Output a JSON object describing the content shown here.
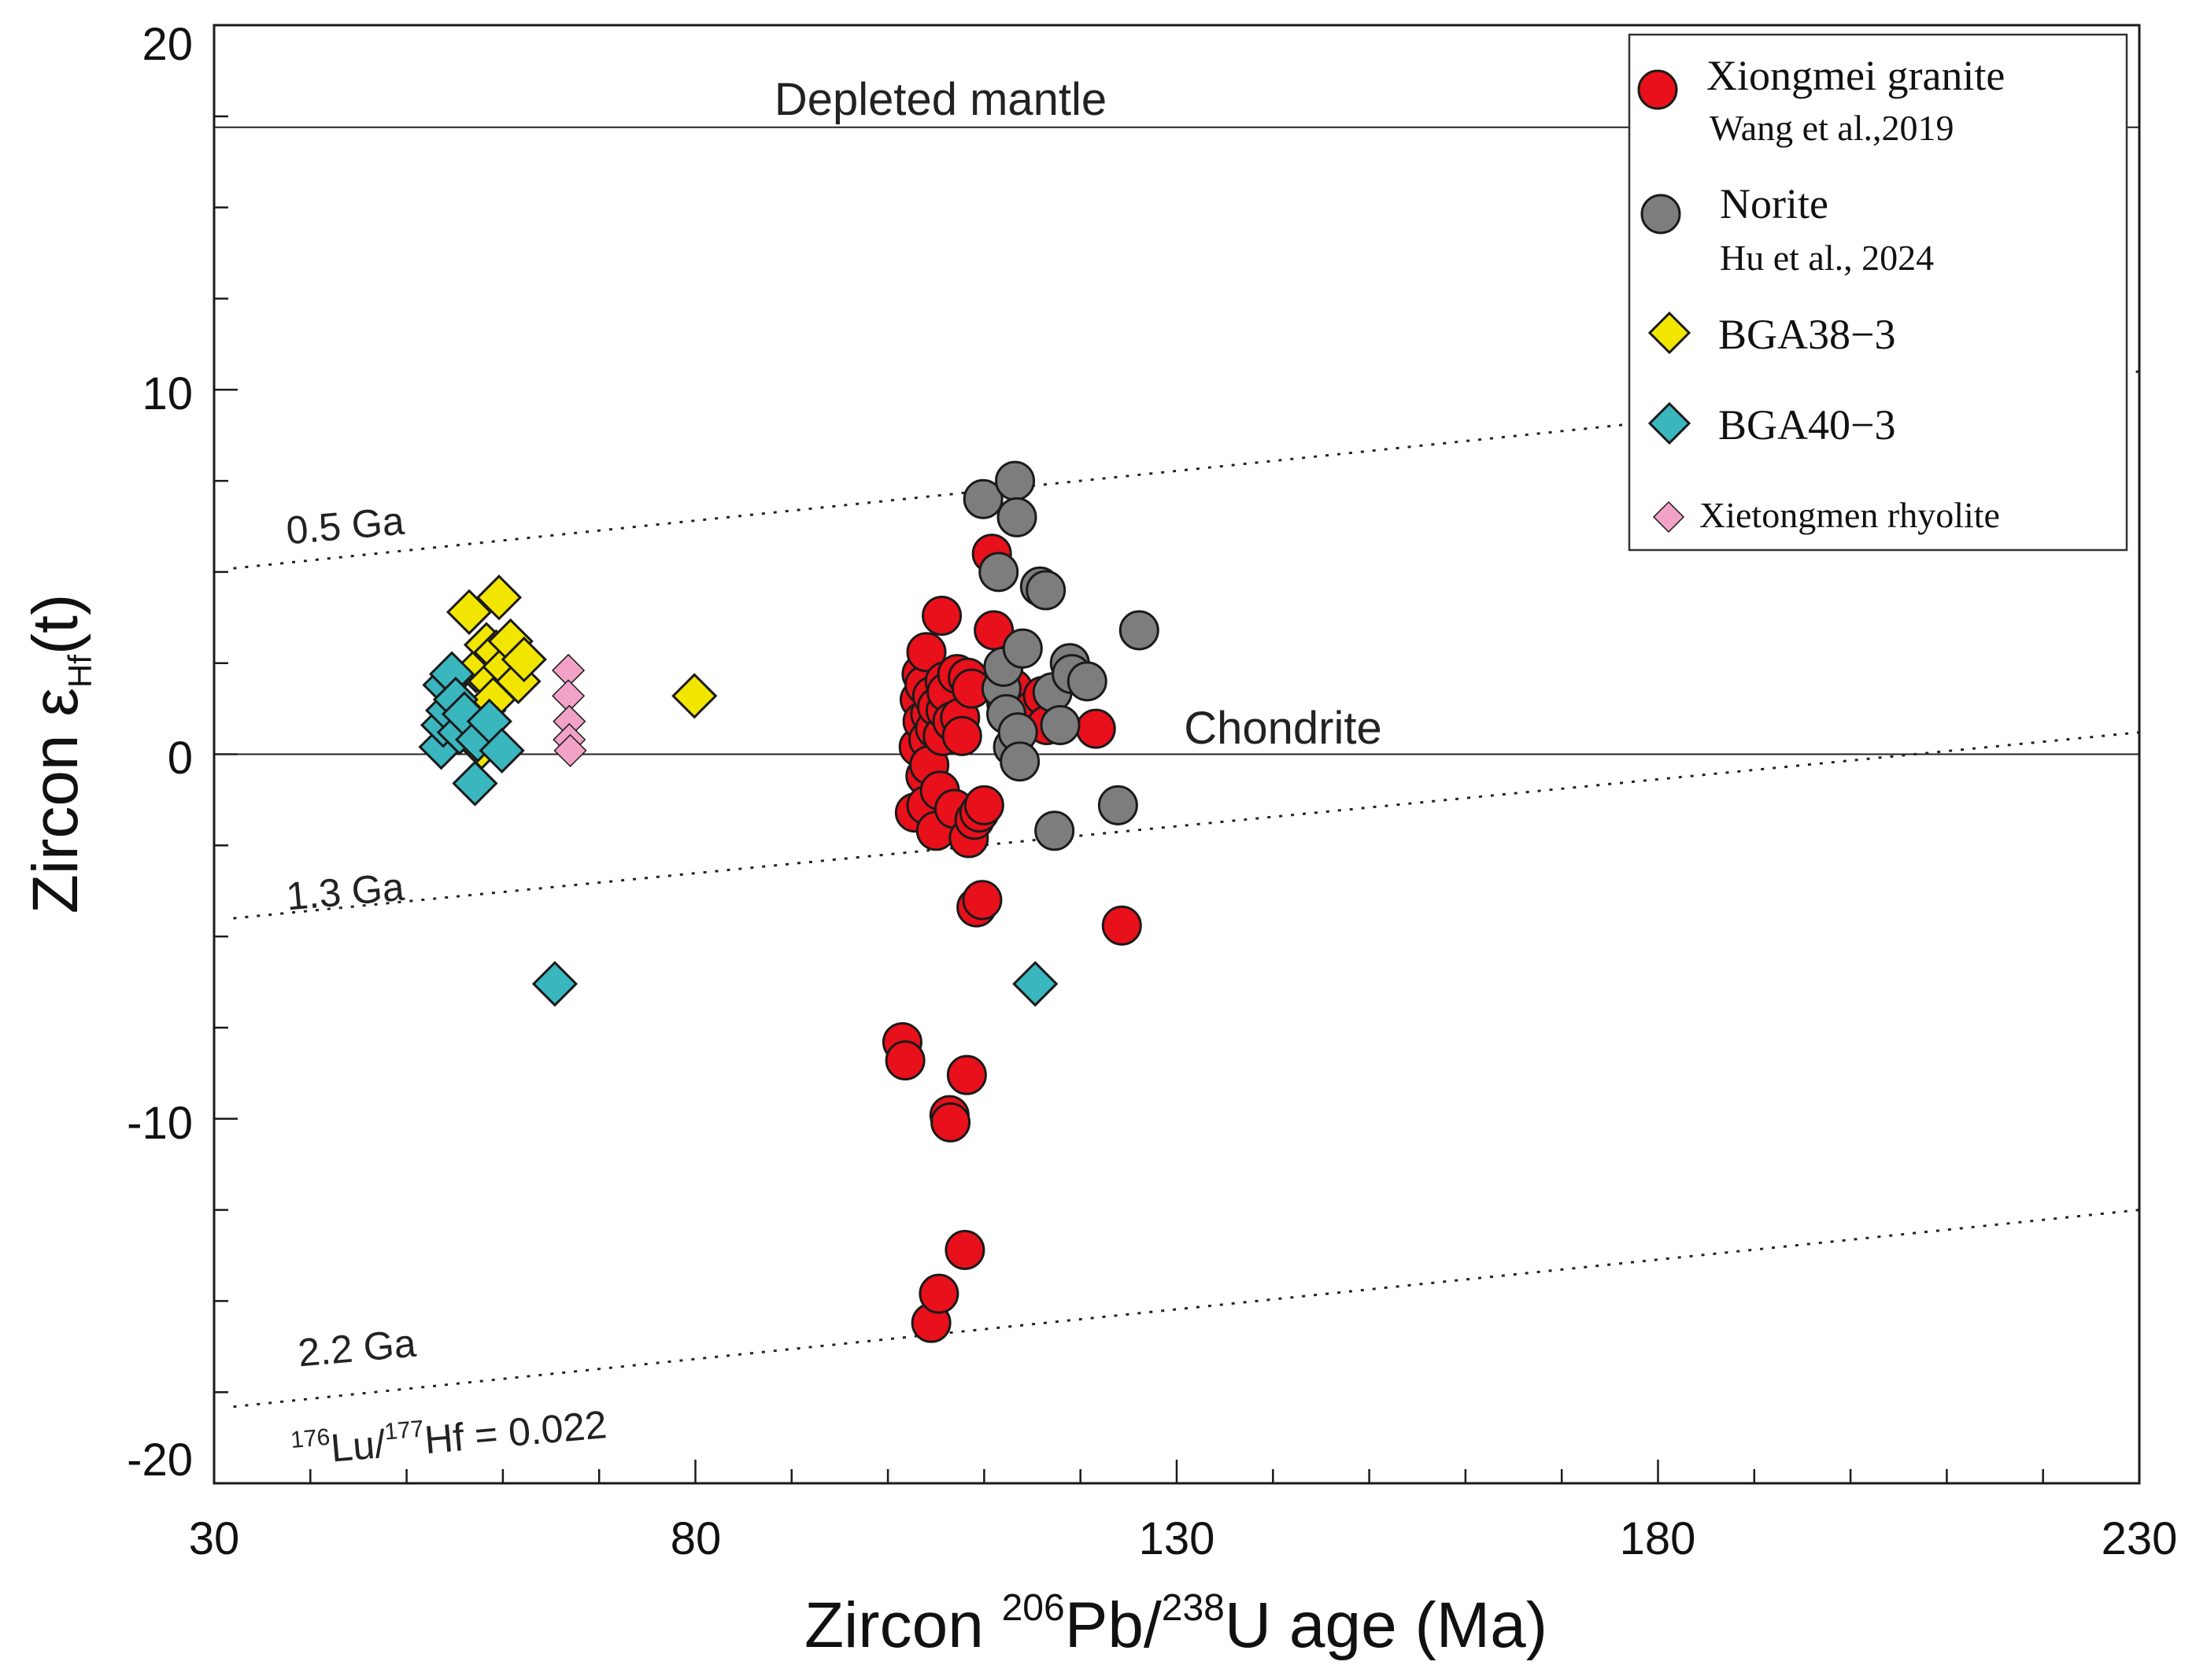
{
  "chart_data": {
    "type": "scatter",
    "title": "",
    "xlabel": {
      "main": "Zircon ",
      "sup1": "206",
      "mid": "Pb/",
      "sup2": "238",
      "end": "U age (Ma)"
    },
    "ylabel": {
      "main": "Zircon ε",
      "sub": "Hf",
      "end": "(t)"
    },
    "xlim": [
      30,
      230
    ],
    "ylim": [
      -20,
      20
    ],
    "xticks": [
      "30",
      "80",
      "130",
      "180",
      "230"
    ],
    "yticks": [
      "-20",
      "-10",
      "0",
      "10",
      "20"
    ],
    "reference_lines": [
      {
        "name": "Depleted mantle",
        "type": "solid",
        "x": [
          30,
          230
        ],
        "y": [
          17.2,
          17.2
        ]
      },
      {
        "name": "Chondrite",
        "type": "solid",
        "x": [
          30,
          230
        ],
        "y": [
          0,
          0
        ]
      },
      {
        "name": "0.5 Ga",
        "type": "dotted",
        "x": [
          32,
          230
        ],
        "y": [
          5.1,
          10.5
        ]
      },
      {
        "name": "1.3 Ga",
        "type": "dotted",
        "x": [
          32,
          230
        ],
        "y": [
          -4.5,
          0.6
        ]
      },
      {
        "name": "2.2 Ga",
        "type": "dotted",
        "x": [
          32,
          230
        ],
        "y": [
          -17.9,
          -12.5
        ]
      }
    ],
    "annotations": {
      "depleted_mantle": "Depleted mantle",
      "chondrite": "Chondrite",
      "ga05": "0.5 Ga",
      "ga13": "1.3 Ga",
      "ga22": "2.2 Ga",
      "lu_ratio": {
        "sup1": "176",
        "t1": "Lu/",
        "sup2": "177",
        "t2": "Hf = 0.022"
      }
    },
    "legend": {
      "placement": "top-right",
      "entries": [
        {
          "label": "Xiongmei  granite",
          "sub": "Wang  et  al.,2019"
        },
        {
          "label": "Norite",
          "sub": "Hu et al., 2024"
        },
        {
          "label": "BGA38−3"
        },
        {
          "label": "BGA40−3"
        },
        {
          "label": "Xietongmen rhyolite"
        }
      ]
    },
    "series": [
      {
        "name": "Xiongmei granite",
        "marker": "circle",
        "color": "#e8101a",
        "points": [
          [
            101.5,
            -7.9
          ],
          [
            101.8,
            -8.4
          ],
          [
            102.8,
            -1.6
          ],
          [
            103.2,
            0.2
          ],
          [
            103.3,
            1.5
          ],
          [
            103.5,
            2.2
          ],
          [
            103.6,
            0.9
          ],
          [
            103.8,
            1.9
          ],
          [
            103.9,
            -0.6
          ],
          [
            104.0,
            -1.4
          ],
          [
            104.0,
            2.8
          ],
          [
            104.2,
            0.4
          ],
          [
            104.3,
            -0.3
          ],
          [
            104.4,
            1.1
          ],
          [
            104.5,
            -15.6
          ],
          [
            104.6,
            1.6
          ],
          [
            104.9,
            0.7
          ],
          [
            105.0,
            -2.1
          ],
          [
            105.1,
            1.3
          ],
          [
            105.3,
            -14.8
          ],
          [
            105.4,
            -1.0
          ],
          [
            105.6,
            3.8
          ],
          [
            105.7,
            0.5
          ],
          [
            105.9,
            2.0
          ],
          [
            106.0,
            1.2
          ],
          [
            106.1,
            1.7
          ],
          [
            106.4,
            -9.9
          ],
          [
            106.5,
            -10.1
          ],
          [
            106.7,
            0.9
          ],
          [
            106.9,
            -1.5
          ],
          [
            107.2,
            2.2
          ],
          [
            107.5,
            1.0
          ],
          [
            107.7,
            0.5
          ],
          [
            108.0,
            -13.6
          ],
          [
            108.2,
            -8.8
          ],
          [
            108.3,
            2.1
          ],
          [
            108.4,
            -2.3
          ],
          [
            108.7,
            1.8
          ],
          [
            109.0,
            -1.8
          ],
          [
            109.2,
            -4.2
          ],
          [
            109.5,
            -1.6
          ],
          [
            109.8,
            -4.0
          ],
          [
            110.0,
            -1.4
          ],
          [
            110.8,
            5.5
          ],
          [
            111.0,
            3.4
          ],
          [
            112.3,
            1.4
          ],
          [
            113.0,
            1.8
          ],
          [
            115.0,
            1.2
          ],
          [
            116.1,
            1.6
          ],
          [
            116.5,
            0.8
          ],
          [
            121.6,
            0.7
          ],
          [
            124.3,
            -4.7
          ]
        ]
      },
      {
        "name": "Norite",
        "marker": "circle",
        "color": "#7d7d7d",
        "points": [
          [
            109.9,
            7.0
          ],
          [
            111.5,
            5.0
          ],
          [
            111.8,
            1.8
          ],
          [
            112.0,
            2.4
          ],
          [
            112.3,
            1.1
          ],
          [
            113.0,
            0.2
          ],
          [
            113.2,
            7.5
          ],
          [
            113.4,
            6.5
          ],
          [
            113.5,
            0.6
          ],
          [
            113.7,
            -0.2
          ],
          [
            114.0,
            2.9
          ],
          [
            115.8,
            4.6
          ],
          [
            116.4,
            4.5
          ],
          [
            117.1,
            1.7
          ],
          [
            117.3,
            -2.1
          ],
          [
            117.9,
            0.8
          ],
          [
            118.9,
            2.5
          ],
          [
            119.1,
            2.2
          ],
          [
            120.7,
            2.0
          ],
          [
            123.9,
            -1.4
          ],
          [
            126.1,
            3.4
          ]
        ]
      },
      {
        "name": "BGA38-3",
        "marker": "diamond",
        "color": "#f2e600",
        "points": [
          [
            56.5,
            3.9
          ],
          [
            57.2,
            2.3
          ],
          [
            57.8,
            0.2
          ],
          [
            58.0,
            1.2
          ],
          [
            58.3,
            3.0
          ],
          [
            58.7,
            2.0
          ],
          [
            59.0,
            1.5
          ],
          [
            59.3,
            2.8
          ],
          [
            59.6,
            4.3
          ],
          [
            60.2,
            2.4
          ],
          [
            60.8,
            3.1
          ],
          [
            61.6,
            2.0
          ],
          [
            62.2,
            2.6
          ],
          [
            79.9,
            1.6
          ]
        ]
      },
      {
        "name": "BGA40-3",
        "marker": "diamond",
        "color": "#3ab6bf",
        "points": [
          [
            53.6,
            0.2
          ],
          [
            53.8,
            0.8
          ],
          [
            54.0,
            1.9
          ],
          [
            54.3,
            1.2
          ],
          [
            54.7,
            2.2
          ],
          [
            55.1,
            1.5
          ],
          [
            55.5,
            0.6
          ],
          [
            56.0,
            1.1
          ],
          [
            57.1,
            -0.8
          ],
          [
            57.4,
            0.4
          ],
          [
            58.6,
            0.9
          ],
          [
            59.9,
            0.1
          ],
          [
            65.4,
            -6.3
          ],
          [
            115.3,
            -6.3
          ]
        ]
      },
      {
        "name": "Xietongmen rhyolite",
        "marker": "diamond",
        "color": "#f2a2c6",
        "points": [
          [
            66.8,
            2.3
          ],
          [
            66.8,
            1.6
          ],
          [
            66.9,
            0.9
          ],
          [
            66.9,
            0.4
          ],
          [
            67.0,
            0.1
          ]
        ]
      }
    ]
  }
}
